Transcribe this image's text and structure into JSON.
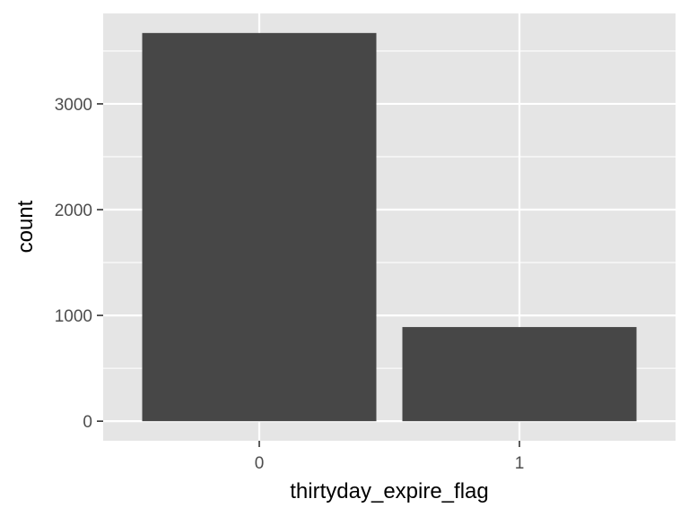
{
  "chart_data": {
    "type": "bar",
    "categories": [
      "0",
      "1"
    ],
    "values": [
      3670,
      890
    ],
    "title": "",
    "xlabel": "thirtyday_expire_flag",
    "ylabel": "count",
    "ylim": [
      -185,
      3855
    ],
    "yticks": [
      0,
      1000,
      2000,
      3000
    ],
    "grid": true,
    "legend": "none",
    "colors": {
      "bar": "#474747",
      "panel": "#e5e5e5",
      "grid": "#ffffff",
      "tick": "#333333",
      "tick_label": "#4d4d4d"
    }
  }
}
